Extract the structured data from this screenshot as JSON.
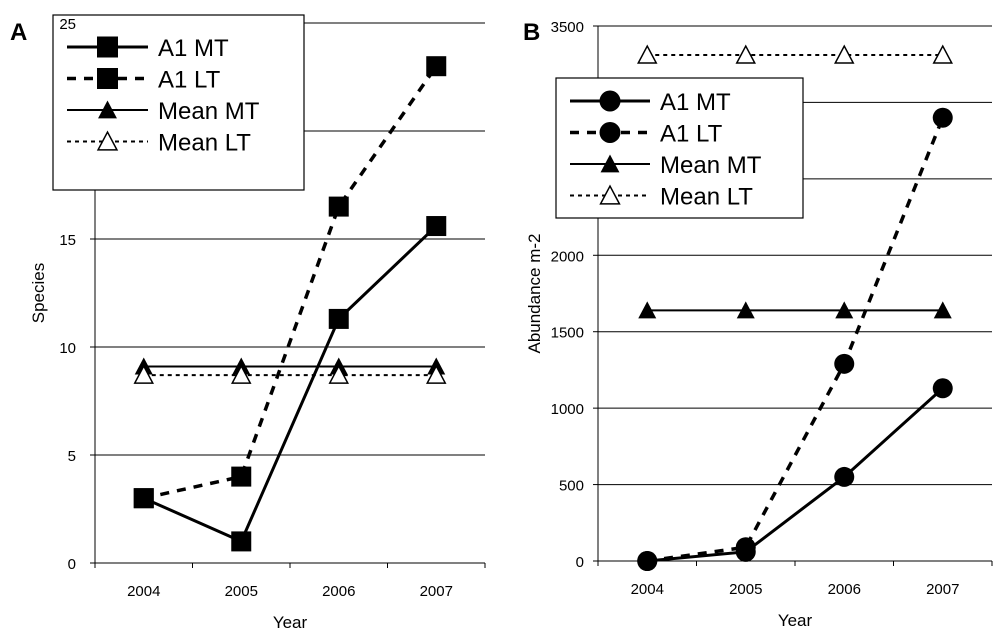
{
  "chart_data": [
    {
      "type": "line",
      "panel_label": "A",
      "xlabel": "Year",
      "ylabel": "Species",
      "categories": [
        "2004",
        "2005",
        "2006",
        "2007"
      ],
      "ylim": [
        0,
        25
      ],
      "yticks": [
        0,
        5,
        10,
        15,
        20,
        25
      ],
      "ytick_labels": [
        "0",
        "5",
        "10",
        "15",
        "",
        "25"
      ],
      "grid": true,
      "legend_position": "top-left",
      "series": [
        {
          "name": "A1 MT",
          "values": [
            3,
            1,
            11.3,
            15.6
          ],
          "marker": "filled-square",
          "dash": "solid"
        },
        {
          "name": "A1 LT",
          "values": [
            3,
            4,
            16.5,
            23
          ],
          "marker": "filled-square",
          "dash": "dashed"
        },
        {
          "name": "Mean MT",
          "values": [
            9.1,
            9.1,
            9.1,
            9.1
          ],
          "marker": "filled-triangle",
          "dash": "solid-thin"
        },
        {
          "name": "Mean LT",
          "values": [
            8.7,
            8.7,
            8.7,
            8.7
          ],
          "marker": "open-triangle",
          "dash": "dotted"
        }
      ]
    },
    {
      "type": "line",
      "panel_label": "B",
      "xlabel": "Year",
      "ylabel": "Abundance m-2",
      "categories": [
        "2004",
        "2005",
        "2006",
        "2007"
      ],
      "ylim": [
        0,
        3500
      ],
      "yticks": [
        0,
        500,
        1000,
        1500,
        2000,
        2500,
        3000,
        3500
      ],
      "ytick_labels": [
        "0",
        "500",
        "1000",
        "1500",
        "2000",
        "",
        "",
        "3500"
      ],
      "grid": true,
      "legend_position": "upper-left",
      "series": [
        {
          "name": "A1 MT",
          "values": [
            0,
            60,
            550,
            1130
          ],
          "marker": "filled-circle",
          "dash": "solid"
        },
        {
          "name": "A1 LT",
          "values": [
            0,
            90,
            1290,
            2900
          ],
          "marker": "filled-circle",
          "dash": "dashed"
        },
        {
          "name": "Mean MT",
          "values": [
            1640,
            1640,
            1640,
            1640
          ],
          "marker": "filled-triangle",
          "dash": "solid-thin"
        },
        {
          "name": "Mean LT",
          "values": [
            3310,
            3310,
            3310,
            3310
          ],
          "marker": "open-triangle",
          "dash": "dotted"
        }
      ]
    }
  ]
}
